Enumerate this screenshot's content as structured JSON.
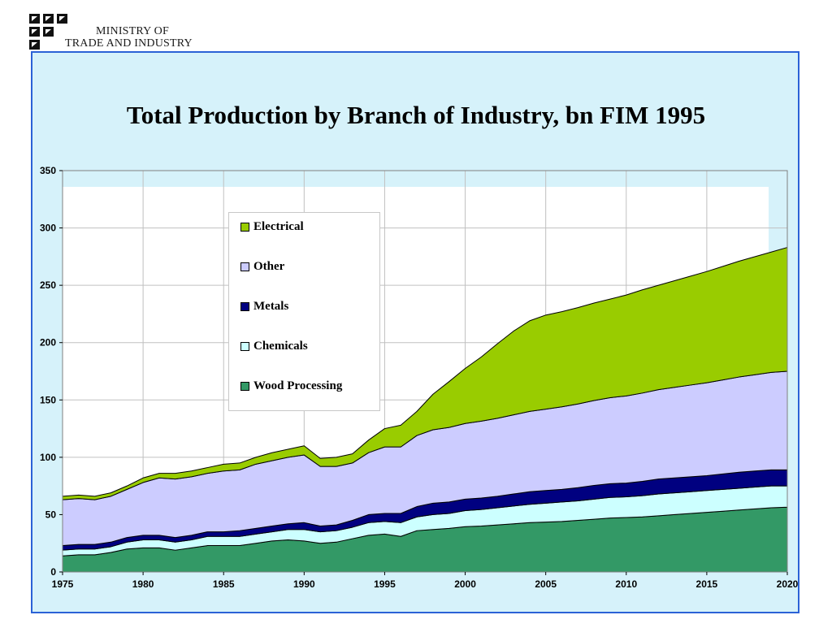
{
  "header": {
    "org_line1": "MINISTRY OF",
    "org_line2": "TRADE AND INDUSTRY"
  },
  "chart_data": {
    "type": "area",
    "stacked": true,
    "title": "Total Production by Branch of Industry, bn FIM 1995",
    "xlabel": "",
    "ylabel": "",
    "xlim": [
      1975,
      2020
    ],
    "ylim": [
      0,
      350
    ],
    "x_ticks": [
      1975,
      1980,
      1985,
      1990,
      1995,
      2000,
      2005,
      2010,
      2015,
      2020
    ],
    "y_ticks": [
      0,
      50,
      100,
      150,
      200,
      250,
      300,
      350
    ],
    "grid": true,
    "legend_position": "upper-left inside plot",
    "x": [
      1975,
      1976,
      1977,
      1978,
      1979,
      1980,
      1981,
      1982,
      1983,
      1984,
      1985,
      1986,
      1987,
      1988,
      1989,
      1990,
      1991,
      1992,
      1993,
      1994,
      1995,
      1996,
      1997,
      1998,
      1999,
      2000,
      2001,
      2002,
      2003,
      2004,
      2005,
      2006,
      2007,
      2008,
      2009,
      2010,
      2011,
      2012,
      2013,
      2014,
      2015,
      2016,
      2017,
      2018,
      2019,
      2020
    ],
    "series": [
      {
        "name": "Wood Processing",
        "color": "#339966",
        "values": [
          14,
          15,
          15,
          17,
          20,
          21,
          21,
          19,
          21,
          23,
          23,
          23,
          25,
          27,
          28,
          27,
          25,
          26,
          29,
          32,
          33,
          31,
          36,
          37,
          38,
          39.5,
          40,
          41,
          42,
          43,
          43.5,
          44,
          45,
          46,
          47,
          47.5,
          48,
          49,
          50,
          51,
          52,
          53,
          54,
          55,
          56,
          56.5
        ]
      },
      {
        "name": "Chemicals",
        "color": "#ccffff",
        "values": [
          5,
          5,
          5,
          5,
          6,
          7,
          7,
          7,
          7,
          8,
          8,
          8,
          8,
          8,
          9,
          10,
          10,
          10,
          10,
          11,
          11,
          12,
          12,
          13,
          13,
          14,
          14.5,
          15,
          15.5,
          16,
          16.5,
          17,
          17,
          17.5,
          18,
          18,
          18.5,
          19,
          19,
          19,
          19,
          19,
          19,
          19,
          19,
          18.5
        ]
      },
      {
        "name": "Metals",
        "color": "#000080",
        "values": [
          4,
          4,
          4,
          4,
          4,
          4,
          4,
          4,
          4,
          4,
          4,
          5,
          5,
          5,
          5,
          6,
          5,
          5,
          6,
          7,
          7,
          8,
          9,
          10,
          10,
          10,
          10,
          10,
          10.5,
          11,
          11,
          11,
          11.5,
          12,
          12,
          12,
          12.5,
          13,
          13,
          13,
          13,
          13.5,
          14,
          14,
          14,
          14
        ]
      },
      {
        "name": "Other",
        "color": "#ccccff",
        "values": [
          40,
          40,
          39,
          40,
          42,
          46,
          50,
          51,
          51,
          51,
          53,
          53,
          56,
          57,
          58,
          59,
          52,
          51,
          50,
          54,
          58,
          58,
          62,
          64,
          65,
          66,
          67,
          68,
          69,
          70,
          71,
          72,
          73,
          74,
          75,
          76,
          77,
          78,
          79,
          80,
          81,
          82,
          83,
          84,
          85,
          86
        ]
      },
      {
        "name": "Electrical",
        "color": "#99cc00",
        "values": [
          3,
          3,
          3,
          3,
          3,
          4,
          4,
          5,
          5,
          5,
          6,
          6,
          6,
          7,
          7,
          8,
          7,
          8,
          8,
          11,
          16,
          19,
          21,
          31,
          40,
          48,
          56,
          65,
          73,
          79,
          82,
          83,
          84,
          85,
          86,
          88,
          90,
          91,
          93,
          95,
          97,
          99,
          101,
          103,
          105,
          108
        ]
      }
    ]
  }
}
